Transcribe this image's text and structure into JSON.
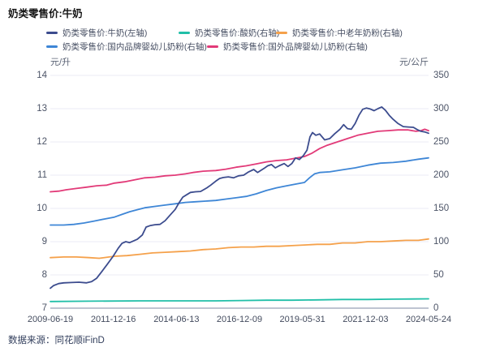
{
  "chart": {
    "title": "奶类零售价:牛奶",
    "left_unit": "元/升",
    "right_unit": "元/公斤",
    "footer": "数据来源：同花顺iFinD"
  },
  "chart_data": {
    "type": "line",
    "title": "奶类零售价:牛奶",
    "grid": true,
    "legend_position": "top",
    "left_axis": {
      "unit": "元/升",
      "ylim": [
        7,
        14
      ],
      "ticks": [
        "14",
        "13",
        "12",
        "11",
        "10",
        "9",
        "8",
        "7"
      ]
    },
    "right_axis": {
      "unit": "元/公斤",
      "ylim": [
        0,
        350
      ],
      "ticks": [
        "350",
        "300",
        "250",
        "200",
        "150",
        "100",
        "50",
        "0"
      ]
    },
    "x_axis": {
      "tick_labels": [
        "2009-06-19",
        "2011-12-16",
        "2014-06-13",
        "2016-12-09",
        "2019-05-31",
        "2021-12-03",
        "2024-05-24"
      ],
      "range_years": [
        2009.47,
        2024.4
      ]
    },
    "colors": {
      "milk": "#3C4C8E",
      "yogurt": "#21BFA8",
      "middle_aged_powder": "#F5A14B",
      "domestic_infant_powder": "#3E86D6",
      "foreign_infant_powder": "#E23A78",
      "gridline": "#EBEBF4",
      "axis_line": "#A9B1C2"
    },
    "series": [
      {
        "name": "奶类零售价:牛奶(左轴)",
        "axis": "left",
        "color": "#3C4C8E",
        "points": [
          [
            2009.47,
            7.6
          ],
          [
            2009.6,
            7.68
          ],
          [
            2009.8,
            7.74
          ],
          [
            2010.0,
            7.76
          ],
          [
            2010.3,
            7.77
          ],
          [
            2010.6,
            7.78
          ],
          [
            2010.9,
            7.76
          ],
          [
            2011.1,
            7.8
          ],
          [
            2011.3,
            7.9
          ],
          [
            2011.5,
            8.1
          ],
          [
            2011.7,
            8.3
          ],
          [
            2011.95,
            8.56
          ],
          [
            2012.15,
            8.8
          ],
          [
            2012.3,
            8.95
          ],
          [
            2012.45,
            9.0
          ],
          [
            2012.6,
            8.97
          ],
          [
            2012.9,
            9.07
          ],
          [
            2013.1,
            9.2
          ],
          [
            2013.25,
            9.44
          ],
          [
            2013.4,
            9.48
          ],
          [
            2013.6,
            9.51
          ],
          [
            2013.8,
            9.52
          ],
          [
            2014.0,
            9.63
          ],
          [
            2014.2,
            9.8
          ],
          [
            2014.4,
            9.97
          ],
          [
            2014.55,
            10.17
          ],
          [
            2014.7,
            10.34
          ],
          [
            2014.85,
            10.41
          ],
          [
            2015.0,
            10.48
          ],
          [
            2015.2,
            10.5
          ],
          [
            2015.4,
            10.51
          ],
          [
            2015.65,
            10.62
          ],
          [
            2015.8,
            10.7
          ],
          [
            2016.0,
            10.82
          ],
          [
            2016.15,
            10.9
          ],
          [
            2016.3,
            10.93
          ],
          [
            2016.5,
            10.95
          ],
          [
            2016.7,
            10.92
          ],
          [
            2016.9,
            10.98
          ],
          [
            2017.1,
            11.0
          ],
          [
            2017.3,
            11.1
          ],
          [
            2017.5,
            11.17
          ],
          [
            2017.65,
            11.08
          ],
          [
            2017.9,
            11.2
          ],
          [
            2018.05,
            11.28
          ],
          [
            2018.2,
            11.32
          ],
          [
            2018.35,
            11.22
          ],
          [
            2018.5,
            11.28
          ],
          [
            2018.7,
            11.35
          ],
          [
            2018.85,
            11.26
          ],
          [
            2019.0,
            11.35
          ],
          [
            2019.15,
            11.52
          ],
          [
            2019.3,
            11.47
          ],
          [
            2019.45,
            11.58
          ],
          [
            2019.6,
            11.75
          ],
          [
            2019.72,
            12.15
          ],
          [
            2019.82,
            12.28
          ],
          [
            2019.95,
            12.2
          ],
          [
            2020.1,
            12.24
          ],
          [
            2020.3,
            12.06
          ],
          [
            2020.5,
            12.1
          ],
          [
            2020.7,
            12.25
          ],
          [
            2020.9,
            12.38
          ],
          [
            2021.05,
            12.52
          ],
          [
            2021.2,
            12.4
          ],
          [
            2021.35,
            12.38
          ],
          [
            2021.5,
            12.55
          ],
          [
            2021.65,
            12.8
          ],
          [
            2021.8,
            12.98
          ],
          [
            2021.95,
            13.02
          ],
          [
            2022.1,
            12.99
          ],
          [
            2022.25,
            12.94
          ],
          [
            2022.4,
            13.0
          ],
          [
            2022.55,
            13.05
          ],
          [
            2022.7,
            12.95
          ],
          [
            2022.85,
            12.8
          ],
          [
            2023.0,
            12.68
          ],
          [
            2023.2,
            12.55
          ],
          [
            2023.4,
            12.46
          ],
          [
            2023.6,
            12.45
          ],
          [
            2023.8,
            12.44
          ],
          [
            2023.95,
            12.37
          ],
          [
            2024.1,
            12.32
          ],
          [
            2024.25,
            12.3
          ],
          [
            2024.4,
            12.26
          ]
        ]
      },
      {
        "name": "奶类零售价:酸奶(右轴)",
        "axis": "right",
        "color": "#21BFA8",
        "points": [
          [
            2009.47,
            10
          ],
          [
            2011.0,
            10.5
          ],
          [
            2013.0,
            11
          ],
          [
            2015.0,
            11
          ],
          [
            2016.0,
            11
          ],
          [
            2017.0,
            11.5
          ],
          [
            2018.0,
            12
          ],
          [
            2019.0,
            12
          ],
          [
            2020.0,
            12.5
          ],
          [
            2021.0,
            13
          ],
          [
            2022.0,
            13
          ],
          [
            2023.0,
            13.5
          ],
          [
            2024.4,
            14
          ]
        ]
      },
      {
        "name": "奶类零售价:中老年奶粉(右轴)",
        "axis": "right",
        "color": "#F5A14B",
        "points": [
          [
            2009.47,
            76
          ],
          [
            2010.0,
            77
          ],
          [
            2010.5,
            77
          ],
          [
            2011.0,
            76
          ],
          [
            2011.4,
            75
          ],
          [
            2012.0,
            78
          ],
          [
            2012.5,
            79
          ],
          [
            2013.0,
            81
          ],
          [
            2013.5,
            83
          ],
          [
            2014.0,
            84
          ],
          [
            2014.5,
            85
          ],
          [
            2015.0,
            86
          ],
          [
            2015.5,
            88
          ],
          [
            2016.0,
            89
          ],
          [
            2016.5,
            91
          ],
          [
            2017.0,
            92
          ],
          [
            2017.5,
            92
          ],
          [
            2018.0,
            93
          ],
          [
            2018.5,
            93
          ],
          [
            2019.0,
            94
          ],
          [
            2019.5,
            95
          ],
          [
            2020.0,
            96
          ],
          [
            2020.5,
            96
          ],
          [
            2021.0,
            98
          ],
          [
            2021.5,
            98
          ],
          [
            2022.0,
            100
          ],
          [
            2022.5,
            100
          ],
          [
            2023.0,
            101
          ],
          [
            2023.5,
            102
          ],
          [
            2024.0,
            102
          ],
          [
            2024.4,
            104
          ]
        ]
      },
      {
        "name": "奶类零售价:国内品牌婴幼儿奶粉(右轴)",
        "axis": "right",
        "color": "#3E86D6",
        "points": [
          [
            2009.47,
            125
          ],
          [
            2010.0,
            125
          ],
          [
            2010.4,
            126
          ],
          [
            2010.8,
            128
          ],
          [
            2011.2,
            131
          ],
          [
            2011.6,
            134
          ],
          [
            2012.0,
            137
          ],
          [
            2012.3,
            141
          ],
          [
            2012.6,
            145
          ],
          [
            2012.9,
            148
          ],
          [
            2013.2,
            151
          ],
          [
            2013.6,
            153
          ],
          [
            2014.0,
            155
          ],
          [
            2014.4,
            157
          ],
          [
            2014.8,
            159
          ],
          [
            2015.2,
            160
          ],
          [
            2015.6,
            161
          ],
          [
            2016.0,
            162
          ],
          [
            2016.4,
            164
          ],
          [
            2016.8,
            166
          ],
          [
            2017.2,
            168
          ],
          [
            2017.6,
            172
          ],
          [
            2018.0,
            177
          ],
          [
            2018.4,
            181
          ],
          [
            2018.8,
            184
          ],
          [
            2019.2,
            187
          ],
          [
            2019.5,
            189
          ],
          [
            2019.7,
            196
          ],
          [
            2019.9,
            202
          ],
          [
            2020.1,
            204
          ],
          [
            2020.5,
            205
          ],
          [
            2021.0,
            208
          ],
          [
            2021.5,
            211
          ],
          [
            2022.0,
            215
          ],
          [
            2022.5,
            218
          ],
          [
            2023.0,
            219
          ],
          [
            2023.5,
            221
          ],
          [
            2024.0,
            224
          ],
          [
            2024.4,
            226
          ]
        ]
      },
      {
        "name": "奶类零售价:国外品牌婴幼儿奶粉(右轴)",
        "axis": "right",
        "color": "#E23A78",
        "points": [
          [
            2009.47,
            175
          ],
          [
            2009.8,
            176
          ],
          [
            2010.1,
            178
          ],
          [
            2010.5,
            180
          ],
          [
            2010.9,
            182
          ],
          [
            2011.3,
            184
          ],
          [
            2011.7,
            185
          ],
          [
            2012.0,
            188
          ],
          [
            2012.4,
            190
          ],
          [
            2012.8,
            193
          ],
          [
            2013.2,
            196
          ],
          [
            2013.6,
            197
          ],
          [
            2014.0,
            199
          ],
          [
            2014.4,
            200
          ],
          [
            2014.8,
            202
          ],
          [
            2015.1,
            204
          ],
          [
            2015.5,
            206
          ],
          [
            2016.0,
            207
          ],
          [
            2016.4,
            209
          ],
          [
            2016.8,
            212
          ],
          [
            2017.2,
            214
          ],
          [
            2017.6,
            217
          ],
          [
            2018.0,
            220
          ],
          [
            2018.4,
            222
          ],
          [
            2018.8,
            223
          ],
          [
            2019.2,
            226
          ],
          [
            2019.5,
            228
          ],
          [
            2019.8,
            233
          ],
          [
            2020.1,
            240
          ],
          [
            2020.4,
            245
          ],
          [
            2020.8,
            250
          ],
          [
            2021.2,
            255
          ],
          [
            2021.6,
            260
          ],
          [
            2022.0,
            263
          ],
          [
            2022.4,
            266
          ],
          [
            2022.8,
            267
          ],
          [
            2023.2,
            268
          ],
          [
            2023.6,
            268
          ],
          [
            2023.9,
            266
          ],
          [
            2024.1,
            267
          ],
          [
            2024.25,
            269
          ],
          [
            2024.4,
            267
          ]
        ]
      }
    ]
  }
}
